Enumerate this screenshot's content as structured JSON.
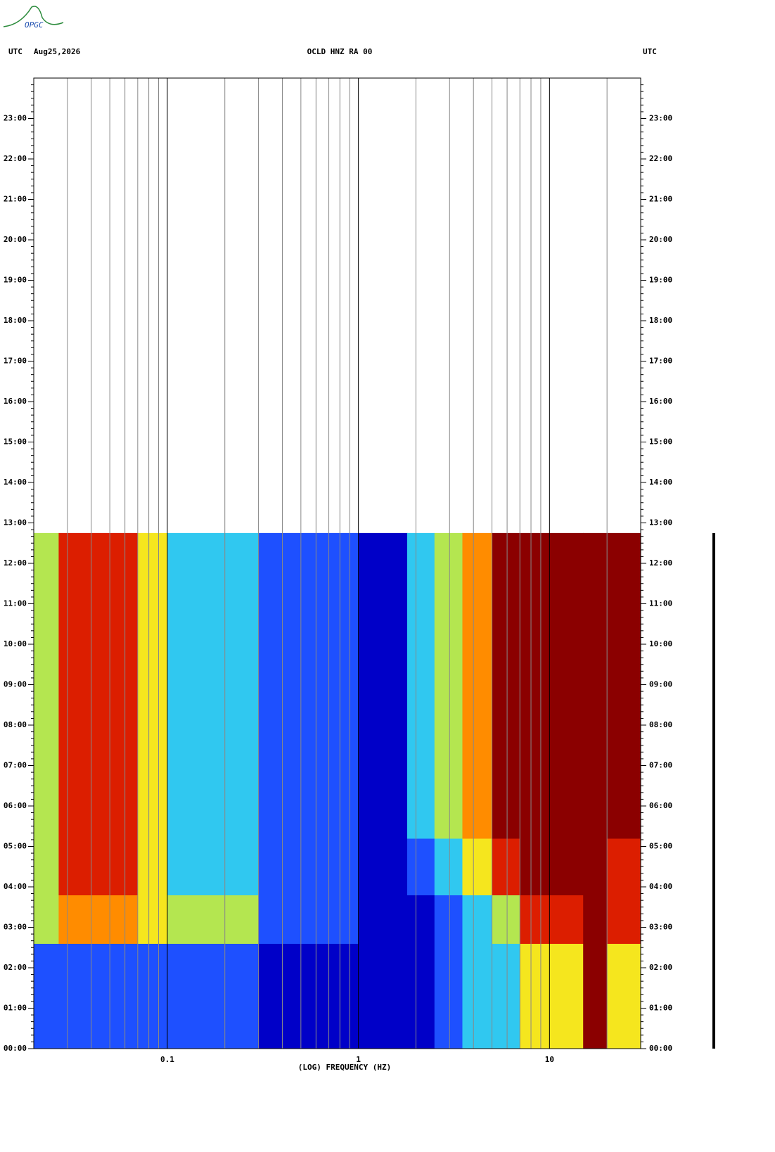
{
  "logo": "OPGC",
  "chart_data": {
    "type": "spectrogram",
    "header_left": [
      "UTC",
      "Aug25,2026"
    ],
    "title": "OCLD HNZ RA 00",
    "header_right": "UTC",
    "xlabel": "(LOG) FREQUENCY (HZ)",
    "xscale": "log",
    "xlim": [
      0.02,
      30
    ],
    "xticks": [
      0.1,
      1,
      10
    ],
    "xgrid": [
      0.03,
      0.04,
      0.05,
      0.06,
      0.07,
      0.08,
      0.09,
      0.1,
      0.2,
      0.3,
      0.4,
      0.5,
      0.6,
      0.7,
      0.8,
      0.9,
      1,
      2,
      3,
      4,
      5,
      6,
      7,
      8,
      9,
      10,
      20
    ],
    "ylim": [
      0,
      24
    ],
    "yticks": [
      {
        "value": 0,
        "label": "00:00"
      },
      {
        "value": 1,
        "label": "01:00"
      },
      {
        "value": 2,
        "label": "02:00"
      },
      {
        "value": 3,
        "label": "03:00"
      },
      {
        "value": 4,
        "label": "04:00"
      },
      {
        "value": 5,
        "label": "05:00"
      },
      {
        "value": 6,
        "label": "06:00"
      },
      {
        "value": 7,
        "label": "07:00"
      },
      {
        "value": 8,
        "label": "08:00"
      },
      {
        "value": 9,
        "label": "09:00"
      },
      {
        "value": 10,
        "label": "10:00"
      },
      {
        "value": 11,
        "label": "11:00"
      },
      {
        "value": 12,
        "label": "12:00"
      },
      {
        "value": 13,
        "label": "13:00"
      },
      {
        "value": 14,
        "label": "14:00"
      },
      {
        "value": 15,
        "label": "15:00"
      },
      {
        "value": 16,
        "label": "16:00"
      },
      {
        "value": 17,
        "label": "17:00"
      },
      {
        "value": 18,
        "label": "18:00"
      },
      {
        "value": 19,
        "label": "19:00"
      },
      {
        "value": 20,
        "label": "20:00"
      },
      {
        "value": 21,
        "label": "21:00"
      },
      {
        "value": 22,
        "label": "22:00"
      },
      {
        "value": 23,
        "label": "23:00"
      }
    ],
    "colormap": [
      "#0000c8",
      "#1e50ff",
      "#30c8f0",
      "#b4e650",
      "#f5e61e",
      "#ff8c00",
      "#dc1e00",
      "#8b0000"
    ],
    "spectrogram": {
      "freq_edges": [
        0.02,
        0.027,
        0.07,
        0.1,
        0.3,
        1,
        1.8,
        2.5,
        3.5,
        5,
        7,
        15,
        20,
        30
      ],
      "time_edges": [
        0,
        2.6,
        3.8,
        5.2,
        12.75
      ],
      "levels": [
        [
          1,
          1,
          1,
          1,
          0,
          0,
          0,
          1,
          2,
          2,
          4,
          7,
          4
        ],
        [
          3,
          5,
          4,
          3,
          1,
          0,
          0,
          1,
          2,
          3,
          6,
          7,
          6
        ],
        [
          3,
          6,
          4,
          2,
          1,
          0,
          1,
          2,
          4,
          6,
          7,
          7,
          6
        ],
        [
          3,
          6,
          4,
          2,
          1,
          0,
          2,
          3,
          5,
          7,
          7,
          7,
          7
        ]
      ]
    }
  }
}
